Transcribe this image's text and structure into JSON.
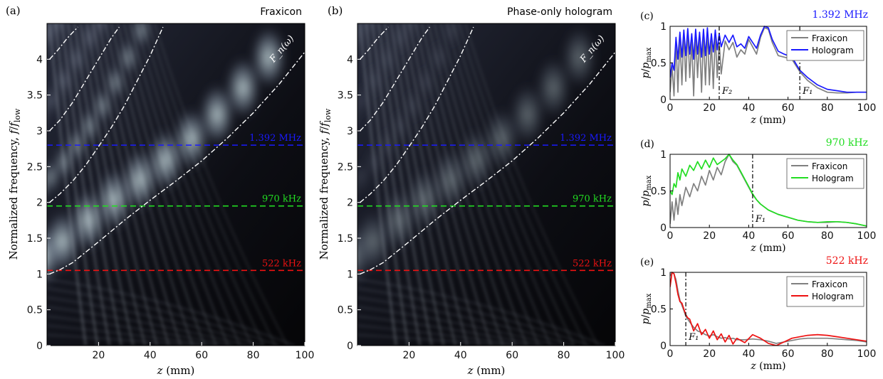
{
  "chart_data": [
    {
      "type": "heatmap",
      "panel_label": "(a)",
      "title": "Fraxicon",
      "xlabel": "z (mm)",
      "ylabel": "Normalized frequency, f/f_low",
      "xlim": [
        0,
        100
      ],
      "ylim": [
        0,
        4.5
      ],
      "xticks": [
        "20",
        "40",
        "60",
        "80",
        "100"
      ],
      "yticks": [
        "0",
        "0.5",
        "1",
        "1.5",
        "2",
        "2.5",
        "3",
        "3.5",
        "4"
      ],
      "curve_label": "F_n(ω)",
      "lines": [
        {
          "label": "1.392 MHz",
          "y": 2.8,
          "color": "#1a1aff"
        },
        {
          "label": "970 kHz",
          "y": 1.95,
          "color": "#22dd22"
        },
        {
          "label": "522 kHz",
          "y": 1.05,
          "color": "#ee1111"
        }
      ],
      "curves": [
        {
          "n": 1,
          "x": [
            1,
            5,
            10,
            20,
            30,
            40,
            50,
            60,
            70,
            80,
            90,
            100
          ],
          "y": [
            1.0,
            1.06,
            1.16,
            1.45,
            1.75,
            2.03,
            2.3,
            2.58,
            2.9,
            3.25,
            3.65,
            4.1
          ]
        },
        {
          "n": 2,
          "x": [
            1,
            5,
            10,
            15,
            20,
            25,
            30,
            35,
            40,
            45
          ],
          "y": [
            2.0,
            2.12,
            2.3,
            2.52,
            2.78,
            3.05,
            3.35,
            3.7,
            4.05,
            4.45
          ]
        },
        {
          "n": 3,
          "x": [
            1,
            5,
            10,
            15,
            20,
            25,
            28
          ],
          "y": [
            3.0,
            3.15,
            3.4,
            3.7,
            4.0,
            4.3,
            4.45
          ]
        },
        {
          "n": 4,
          "x": [
            1,
            4,
            8,
            12
          ],
          "y": [
            4.0,
            4.12,
            4.3,
            4.45
          ]
        }
      ]
    },
    {
      "type": "heatmap",
      "panel_label": "(b)",
      "title": "Phase-only hologram",
      "xlabel": "z (mm)",
      "ylabel": "Normalized frequency, f/f_low",
      "xlim": [
        0,
        100
      ],
      "ylim": [
        0,
        4.5
      ],
      "xticks": [
        "20",
        "40",
        "60",
        "80",
        "100"
      ],
      "yticks": [
        "0",
        "0.5",
        "1",
        "1.5",
        "2",
        "2.5",
        "3",
        "3.5",
        "4"
      ],
      "curve_label": "F_n(ω)",
      "lines": [
        {
          "label": "1.392 MHz",
          "y": 2.8,
          "color": "#1a1aff"
        },
        {
          "label": "970 kHz",
          "y": 1.95,
          "color": "#22dd22"
        },
        {
          "label": "522 kHz",
          "y": 1.05,
          "color": "#ee1111"
        }
      ],
      "curves": [
        {
          "n": 1,
          "x": [
            1,
            5,
            10,
            20,
            30,
            40,
            50,
            60,
            70,
            80,
            90,
            100
          ],
          "y": [
            1.0,
            1.06,
            1.16,
            1.45,
            1.75,
            2.03,
            2.3,
            2.58,
            2.9,
            3.25,
            3.65,
            4.1
          ]
        },
        {
          "n": 2,
          "x": [
            1,
            5,
            10,
            15,
            20,
            25,
            30,
            35,
            40,
            45
          ],
          "y": [
            2.0,
            2.12,
            2.3,
            2.52,
            2.78,
            3.05,
            3.35,
            3.7,
            4.05,
            4.45
          ]
        },
        {
          "n": 3,
          "x": [
            1,
            5,
            10,
            15,
            20,
            25,
            28
          ],
          "y": [
            3.0,
            3.15,
            3.4,
            3.7,
            4.0,
            4.3,
            4.45
          ]
        },
        {
          "n": 4,
          "x": [
            1,
            4,
            8,
            12
          ],
          "y": [
            4.0,
            4.12,
            4.3,
            4.45
          ]
        }
      ]
    },
    {
      "type": "line",
      "panel_label": "(c)",
      "title": "1.392 MHz",
      "title_color": "#1a1aff",
      "xlabel": "z (mm)",
      "ylabel": "p/p_max",
      "xlim": [
        0,
        100
      ],
      "ylim": [
        0,
        1
      ],
      "xticks": [
        "0",
        "20",
        "40",
        "60",
        "80",
        "100"
      ],
      "yticks": [
        "0",
        "0.5",
        "1"
      ],
      "legend_position": "top-right",
      "markers": [
        {
          "label": "F₂",
          "x": 25
        },
        {
          "label": "F₁",
          "x": 66
        }
      ],
      "series": [
        {
          "name": "Fraxicon",
          "color": "#808080",
          "x": [
            0,
            1,
            2,
            3,
            4,
            5,
            6,
            7,
            8,
            9,
            10,
            11,
            12,
            13,
            14,
            15,
            16,
            17,
            18,
            19,
            20,
            21,
            22,
            23,
            24,
            25,
            26,
            28,
            30,
            32,
            34,
            36,
            38,
            40,
            42,
            44,
            46,
            48,
            50,
            52,
            55,
            58,
            62,
            66,
            70,
            75,
            80,
            85,
            90,
            95,
            100
          ],
          "y": [
            0.1,
            0.45,
            0.05,
            0.8,
            0.1,
            0.85,
            0.2,
            0.9,
            0.25,
            0.95,
            0.3,
            0.8,
            0.05,
            0.9,
            0.3,
            0.85,
            0.1,
            0.9,
            0.2,
            0.95,
            0.2,
            0.8,
            0.15,
            0.88,
            0.3,
            0.78,
            0.35,
            0.8,
            0.68,
            0.78,
            0.58,
            0.68,
            0.62,
            0.82,
            0.72,
            0.62,
            0.85,
            0.98,
            0.96,
            0.78,
            0.6,
            0.58,
            0.55,
            0.38,
            0.26,
            0.16,
            0.1,
            0.09,
            0.09,
            0.1,
            0.1
          ]
        },
        {
          "name": "Hologram",
          "color": "#1a1aff",
          "x": [
            0,
            1,
            2,
            3,
            4,
            5,
            6,
            7,
            8,
            9,
            10,
            11,
            12,
            13,
            14,
            15,
            16,
            17,
            18,
            19,
            20,
            21,
            22,
            23,
            24,
            25,
            26,
            28,
            30,
            32,
            34,
            36,
            38,
            40,
            42,
            44,
            46,
            48,
            50,
            52,
            55,
            58,
            62,
            66,
            70,
            75,
            80,
            85,
            90,
            95,
            100
          ],
          "y": [
            0.3,
            0.5,
            0.4,
            0.85,
            0.55,
            0.92,
            0.58,
            0.95,
            0.6,
            0.97,
            0.62,
            0.9,
            0.55,
            0.96,
            0.62,
            0.92,
            0.58,
            0.96,
            0.6,
            0.98,
            0.62,
            0.9,
            0.65,
            0.95,
            0.68,
            0.9,
            0.72,
            0.88,
            0.78,
            0.88,
            0.72,
            0.76,
            0.7,
            0.86,
            0.78,
            0.7,
            0.88,
            1.0,
            0.98,
            0.82,
            0.66,
            0.62,
            0.58,
            0.4,
            0.3,
            0.2,
            0.14,
            0.12,
            0.1,
            0.1,
            0.1
          ]
        }
      ]
    },
    {
      "type": "line",
      "panel_label": "(d)",
      "title": "970 kHz",
      "title_color": "#22dd22",
      "xlabel": "z (mm)",
      "ylabel": "p/p_max",
      "xlim": [
        0,
        100
      ],
      "ylim": [
        0,
        1
      ],
      "xticks": [
        "0",
        "20",
        "40",
        "60",
        "80",
        "100"
      ],
      "yticks": [
        "0",
        "0.5",
        "1"
      ],
      "legend_position": "top-right",
      "markers": [
        {
          "label": "F₁",
          "x": 42
        }
      ],
      "series": [
        {
          "name": "Fraxicon",
          "color": "#808080",
          "x": [
            0,
            1,
            2,
            3,
            4,
            5,
            6,
            8,
            10,
            12,
            14,
            16,
            18,
            20,
            22,
            24,
            26,
            28,
            30,
            32,
            34,
            36,
            38,
            40,
            42,
            44,
            46,
            50,
            55,
            60,
            65,
            70,
            75,
            80,
            85,
            90,
            95,
            100
          ],
          "y": [
            0.05,
            0.35,
            0.1,
            0.4,
            0.18,
            0.45,
            0.3,
            0.55,
            0.42,
            0.6,
            0.5,
            0.7,
            0.58,
            0.78,
            0.65,
            0.82,
            0.72,
            0.9,
            1.0,
            0.9,
            0.85,
            0.75,
            0.65,
            0.55,
            0.45,
            0.38,
            0.32,
            0.24,
            0.18,
            0.14,
            0.1,
            0.08,
            0.07,
            0.07,
            0.08,
            0.07,
            0.05,
            0.02
          ]
        },
        {
          "name": "Hologram",
          "color": "#22dd22",
          "x": [
            0,
            1,
            2,
            3,
            4,
            5,
            6,
            8,
            10,
            12,
            14,
            16,
            18,
            20,
            22,
            24,
            26,
            28,
            30,
            32,
            34,
            36,
            38,
            40,
            42,
            44,
            46,
            50,
            55,
            60,
            65,
            70,
            75,
            80,
            85,
            90,
            95,
            100
          ],
          "y": [
            0.5,
            0.45,
            0.6,
            0.55,
            0.75,
            0.65,
            0.8,
            0.7,
            0.85,
            0.78,
            0.9,
            0.8,
            0.92,
            0.82,
            0.95,
            0.86,
            0.9,
            0.94,
            1.0,
            0.92,
            0.86,
            0.76,
            0.66,
            0.56,
            0.46,
            0.38,
            0.32,
            0.24,
            0.18,
            0.14,
            0.1,
            0.08,
            0.07,
            0.08,
            0.08,
            0.07,
            0.05,
            0.02
          ]
        }
      ]
    },
    {
      "type": "line",
      "panel_label": "(e)",
      "title": "522 kHz",
      "title_color": "#ee1111",
      "xlabel": "z (mm)",
      "ylabel": "p/p_max",
      "xlim": [
        0,
        100
      ],
      "ylim": [
        0,
        1
      ],
      "xticks": [
        "0",
        "20",
        "40",
        "60",
        "80",
        "100"
      ],
      "yticks": [
        "0",
        "0.5",
        "1"
      ],
      "legend_position": "top-right",
      "markers": [
        {
          "label": "F₁",
          "x": 8
        }
      ],
      "series": [
        {
          "name": "Fraxicon",
          "color": "#808080",
          "x": [
            0,
            1,
            2,
            3,
            4,
            5,
            6,
            7,
            8,
            9,
            10,
            12,
            14,
            16,
            18,
            20,
            22,
            24,
            26,
            28,
            30,
            32,
            34,
            38,
            42,
            46,
            50,
            54,
            58,
            62,
            66,
            70,
            75,
            80,
            85,
            90,
            95,
            100
          ],
          "y": [
            0.95,
            1.0,
            0.98,
            0.9,
            0.75,
            0.62,
            0.55,
            0.48,
            0.4,
            0.36,
            0.32,
            0.25,
            0.2,
            0.18,
            0.15,
            0.13,
            0.15,
            0.12,
            0.1,
            0.11,
            0.09,
            0.1,
            0.08,
            0.08,
            0.09,
            0.08,
            0.06,
            0.03,
            0.05,
            0.07,
            0.09,
            0.1,
            0.1,
            0.1,
            0.09,
            0.08,
            0.07,
            0.05
          ]
        },
        {
          "name": "Hologram",
          "color": "#ee1111",
          "x": [
            0,
            1,
            2,
            3,
            4,
            5,
            6,
            7,
            8,
            9,
            10,
            12,
            14,
            16,
            18,
            20,
            22,
            24,
            26,
            28,
            30,
            32,
            34,
            38,
            42,
            46,
            50,
            54,
            58,
            62,
            66,
            70,
            75,
            80,
            85,
            90,
            95,
            100
          ],
          "y": [
            0.8,
            1.0,
            0.98,
            0.85,
            0.7,
            0.6,
            0.58,
            0.5,
            0.42,
            0.38,
            0.36,
            0.2,
            0.3,
            0.15,
            0.22,
            0.1,
            0.2,
            0.08,
            0.16,
            0.05,
            0.14,
            0.02,
            0.1,
            0.04,
            0.15,
            0.1,
            0.03,
            0.0,
            0.05,
            0.1,
            0.12,
            0.14,
            0.15,
            0.14,
            0.12,
            0.1,
            0.08,
            0.06
          ]
        }
      ]
    }
  ]
}
